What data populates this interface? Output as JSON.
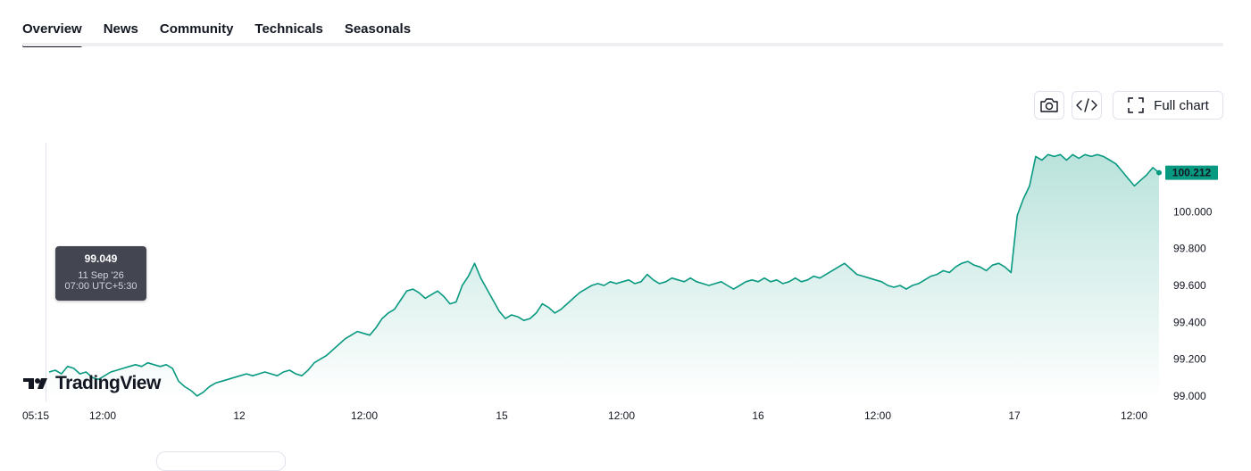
{
  "tabs": [
    {
      "label": "Overview",
      "active": true
    },
    {
      "label": "News",
      "active": false
    },
    {
      "label": "Community",
      "active": false
    },
    {
      "label": "Technicals",
      "active": false
    },
    {
      "label": "Seasonals",
      "active": false
    }
  ],
  "toolbar": {
    "snapshot_icon": "camera-icon",
    "embed_icon": "code-icon",
    "full_chart_icon": "fullscreen-icon",
    "full_chart_label": "Full chart"
  },
  "tooltip": {
    "value": "99.049",
    "date": "11 Sep '26",
    "time": "07:00 UTC+5:30"
  },
  "branding": {
    "logo_text": "TradingView"
  },
  "colors": {
    "line": "#089981",
    "fill_top": "#089981",
    "price_label_bg": "#089981",
    "tooltip_bg": "#434651"
  },
  "chart_data": {
    "type": "area",
    "last_price_label": "100.212",
    "ylim": [
      98.98,
      100.36
    ],
    "y_ticks": [
      "100.000",
      "99.800",
      "99.600",
      "99.400",
      "99.200",
      "99.000"
    ],
    "y_tick_values": [
      100.0,
      99.8,
      99.6,
      99.4,
      99.2,
      99.0
    ],
    "x_ticks": [
      "05:15",
      "12:00",
      "12",
      "12:00",
      "15",
      "12:00",
      "16",
      "12:00",
      "17",
      "12:00"
    ],
    "grid": false,
    "series": [
      {
        "values": [
          99.13,
          99.14,
          99.12,
          99.16,
          99.15,
          99.12,
          99.13,
          99.1,
          99.09,
          99.11,
          99.13,
          99.14,
          99.15,
          99.16,
          99.17,
          99.16,
          99.18,
          99.17,
          99.16,
          99.17,
          99.15,
          99.08,
          99.05,
          99.03,
          99.0,
          99.02,
          99.05,
          99.07,
          99.08,
          99.09,
          99.1,
          99.11,
          99.12,
          99.11,
          99.12,
          99.13,
          99.12,
          99.11,
          99.13,
          99.14,
          99.12,
          99.11,
          99.14,
          99.18,
          99.2,
          99.22,
          99.25,
          99.28,
          99.31,
          99.33,
          99.35,
          99.34,
          99.33,
          99.37,
          99.42,
          99.45,
          99.47,
          99.52,
          99.57,
          99.58,
          99.56,
          99.53,
          99.55,
          99.57,
          99.54,
          99.5,
          99.51,
          99.6,
          99.65,
          99.72,
          99.64,
          99.58,
          99.52,
          99.46,
          99.42,
          99.44,
          99.43,
          99.41,
          99.42,
          99.45,
          99.5,
          99.48,
          99.45,
          99.47,
          99.5,
          99.53,
          99.56,
          99.58,
          99.6,
          99.61,
          99.6,
          99.62,
          99.61,
          99.62,
          99.63,
          99.61,
          99.62,
          99.66,
          99.63,
          99.61,
          99.62,
          99.64,
          99.63,
          99.62,
          99.64,
          99.62,
          99.61,
          99.6,
          99.61,
          99.62,
          99.6,
          99.58,
          99.6,
          99.62,
          99.63,
          99.62,
          99.64,
          99.62,
          99.63,
          99.61,
          99.62,
          99.64,
          99.62,
          99.63,
          99.65,
          99.64,
          99.66,
          99.68,
          99.7,
          99.72,
          99.69,
          99.66,
          99.65,
          99.64,
          99.63,
          99.62,
          99.6,
          99.59,
          99.6,
          99.58,
          99.6,
          99.61,
          99.63,
          99.65,
          99.66,
          99.68,
          99.67,
          99.7,
          99.72,
          99.73,
          99.71,
          99.7,
          99.68,
          99.71,
          99.72,
          99.7,
          99.67,
          99.98,
          100.07,
          100.14,
          100.3,
          100.28,
          100.31,
          100.3,
          100.31,
          100.28,
          100.31,
          100.29,
          100.31,
          100.3,
          100.31,
          100.3,
          100.28,
          100.26,
          100.22,
          100.18,
          100.14,
          100.17,
          100.2,
          100.24,
          100.212
        ]
      }
    ]
  }
}
